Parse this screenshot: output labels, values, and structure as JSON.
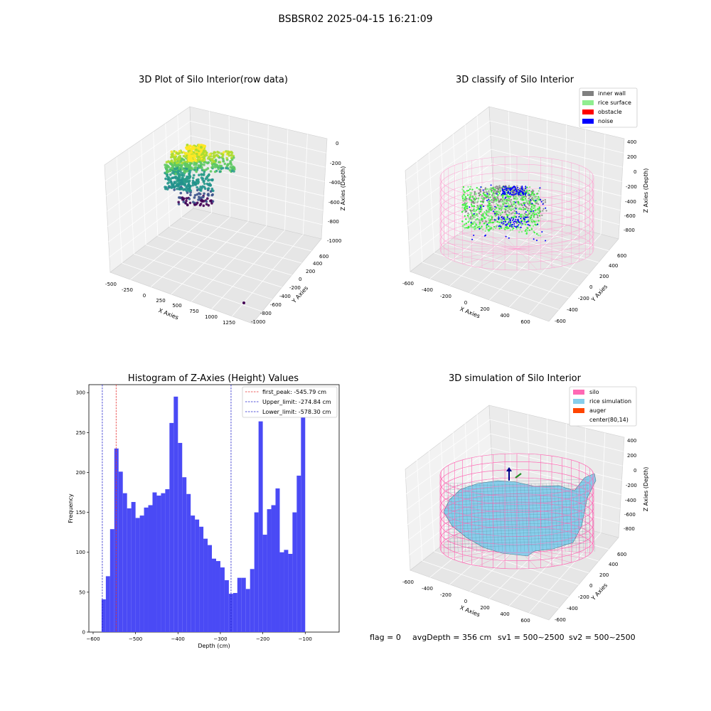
{
  "suptitle": "BSBSR02 2025-04-15 16:21:09",
  "status": {
    "flag": "flag = 0",
    "avg_depth": "avgDepth = 356 cm",
    "sv1": "sv1 = 500~2500",
    "sv2": "sv2 = 500~2500"
  },
  "colors": {
    "hist_bar": "#4a4af5",
    "peak_line": "#e83030",
    "limit_line": "#2222cc",
    "inner_wall": "#808080",
    "rice_surface": "#90ee90",
    "obstacle": "#ff0000",
    "noise": "#0000ff",
    "silo": "#ff69b4",
    "rice_simulation": "#87ceeb",
    "auger": "#ff4500"
  },
  "chart_data": [
    {
      "type": "scatter",
      "projection": "3d",
      "title": "3D Plot of Silo Interior(row data)",
      "xlabel": "X Axies",
      "ylabel": "Y Axies",
      "zlabel": "Z Axies (Depth)",
      "x_ticks": [
        "-500",
        "-250",
        "0",
        "250",
        "500",
        "750",
        "1000",
        "1250"
      ],
      "y_ticks": [
        "-1000",
        "-800",
        "-600",
        "-400",
        "-200",
        "0",
        "200",
        "400",
        "600"
      ],
      "z_ticks": [
        "-1000",
        "-800",
        "-600",
        "-400",
        "-200",
        "0"
      ],
      "xlim": [
        -550,
        1350
      ],
      "ylim": [
        -1050,
        650
      ],
      "zlim": [
        -1000,
        0
      ],
      "colormap": "viridis"
    },
    {
      "type": "scatter",
      "projection": "3d",
      "title": "3D classify of Silo Interior",
      "xlabel": "X Axies",
      "ylabel": "Y Axies",
      "zlabel": "Z Axies (Depth)",
      "x_ticks": [
        "-600",
        "-400",
        "-200",
        "0",
        "200",
        "400",
        "600"
      ],
      "y_ticks": [
        "-600",
        "-400",
        "-200",
        "0",
        "200",
        "400",
        "600"
      ],
      "z_ticks": [
        "-800",
        "-600",
        "-400",
        "-200",
        "0",
        "200",
        "400"
      ],
      "xlim": [
        -650,
        700
      ],
      "ylim": [
        -650,
        700
      ],
      "zlim": [
        -900,
        450
      ],
      "legend": [
        "inner wall",
        "rice surface",
        "obstacle",
        "noise"
      ],
      "legend_position": "upper right"
    },
    {
      "type": "bar",
      "title": "Histogram of Z-Axies (Height) Values",
      "xlabel": "Depth (cm)",
      "ylabel": "Frequency",
      "xlim": [
        -610,
        -20
      ],
      "ylim": [
        0,
        310
      ],
      "x_ticks": [
        -600,
        -500,
        -400,
        -300,
        -200,
        -100
      ],
      "y_ticks": [
        0,
        50,
        100,
        150,
        200,
        250,
        300
      ],
      "bin_start": -580,
      "bin_width": 10,
      "values": [
        41,
        70,
        129,
        230,
        201,
        174,
        155,
        163,
        143,
        146,
        156,
        159,
        175,
        171,
        174,
        179,
        262,
        295,
        237,
        194,
        173,
        146,
        141,
        132,
        117,
        109,
        92,
        89,
        81,
        65,
        48,
        49,
        68,
        68,
        54,
        79,
        150,
        264,
        122,
        154,
        159,
        180,
        100,
        103,
        98,
        150,
        196,
        277
      ],
      "reference_lines": [
        {
          "label": "first_peak: -545.79 cm",
          "x": -545.79,
          "style": "red"
        },
        {
          "label": "Upper_limit: -274.84 cm",
          "x": -274.84,
          "style": "blue"
        },
        {
          "label": "Lower_limit: -578.30 cm",
          "x": -578.3,
          "style": "blue"
        }
      ],
      "legend_position": "upper right"
    },
    {
      "type": "surface",
      "projection": "3d",
      "title": "3D simulation of Silo Interior",
      "xlabel": "X Axies",
      "ylabel": "Y Axies",
      "zlabel": "Z Axies (Depth)",
      "x_ticks": [
        "-600",
        "-400",
        "-200",
        "0",
        "200",
        "400",
        "600"
      ],
      "y_ticks": [
        "-600",
        "-400",
        "-200",
        "0",
        "200",
        "400",
        "600"
      ],
      "z_ticks": [
        "-800",
        "-600",
        "-400",
        "-200",
        "0",
        "200",
        "400"
      ],
      "xlim": [
        -650,
        700
      ],
      "ylim": [
        -650,
        700
      ],
      "zlim": [
        -900,
        450
      ],
      "legend": [
        "silo",
        "rice simulation",
        "auger",
        "center(80,14)"
      ],
      "legend_position": "upper right"
    }
  ]
}
